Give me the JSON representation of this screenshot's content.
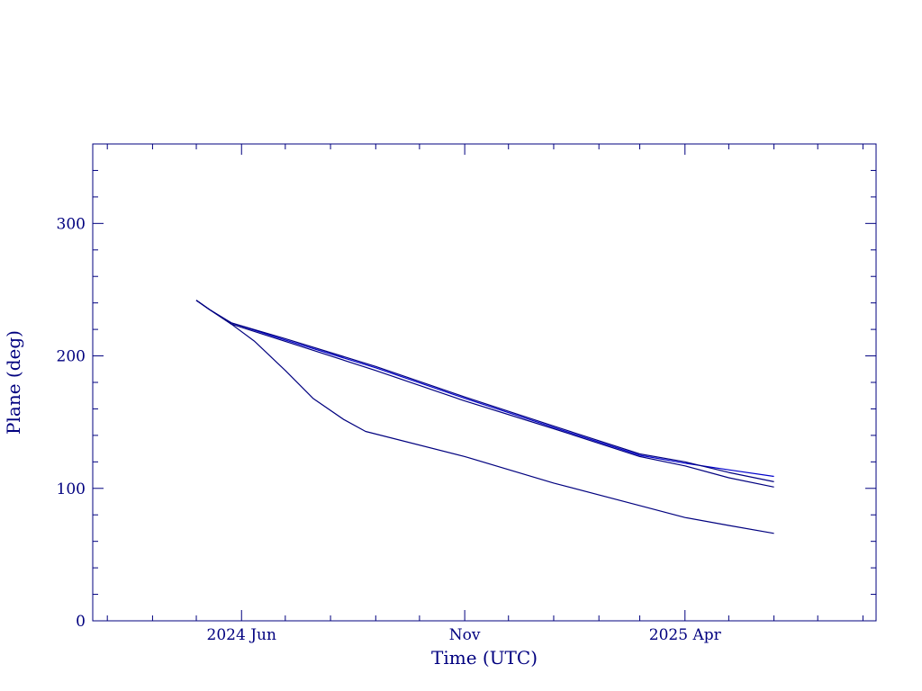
{
  "colors": {
    "axis": "#00007f",
    "series": "#00007f",
    "series_alt": "#0000cc",
    "background": "#ffffff"
  },
  "chart_data": {
    "type": "line",
    "title": "",
    "xlabel": "Time (UTC)",
    "ylabel": "Plane (deg)",
    "ylim": [
      0,
      360
    ],
    "xlim": [
      "2024-02-20",
      "2025-08-10"
    ],
    "x_ticks": [
      {
        "x": "2024-06-01",
        "label": "2024 Jun"
      },
      {
        "x": "2024-11-01",
        "label": "Nov"
      },
      {
        "x": "2025-04-01",
        "label": "2025 Apr"
      }
    ],
    "y_ticks": [
      0,
      100,
      200,
      300
    ],
    "grid": false,
    "series": [
      {
        "points": [
          [
            "2024-05-01",
            242
          ],
          [
            "2024-05-10",
            235
          ],
          [
            "2024-05-25",
            225
          ],
          [
            "2024-07-01",
            212
          ],
          [
            "2024-09-01",
            191
          ],
          [
            "2024-11-01",
            168
          ],
          [
            "2025-01-01",
            146
          ],
          [
            "2025-03-01",
            125
          ],
          [
            "2025-04-01",
            119
          ],
          [
            "2025-05-01",
            114
          ],
          [
            "2025-06-01",
            109
          ]
        ]
      },
      {
        "points": [
          [
            "2024-05-01",
            242
          ],
          [
            "2024-05-10",
            235
          ],
          [
            "2024-05-25",
            225
          ],
          [
            "2024-07-01",
            213
          ],
          [
            "2024-09-01",
            192
          ],
          [
            "2024-11-01",
            169
          ],
          [
            "2025-01-01",
            147
          ],
          [
            "2025-03-01",
            126
          ],
          [
            "2025-04-01",
            120
          ],
          [
            "2025-05-01",
            112
          ],
          [
            "2025-06-01",
            105
          ]
        ]
      },
      {
        "points": [
          [
            "2024-05-01",
            242
          ],
          [
            "2024-05-10",
            235
          ],
          [
            "2024-05-25",
            224
          ],
          [
            "2024-07-01",
            211
          ],
          [
            "2024-09-01",
            189
          ],
          [
            "2024-11-01",
            166
          ],
          [
            "2025-01-01",
            145
          ],
          [
            "2025-03-01",
            124
          ],
          [
            "2025-04-01",
            117
          ],
          [
            "2025-05-01",
            108
          ],
          [
            "2025-06-01",
            101
          ]
        ]
      },
      {
        "points": [
          [
            "2024-05-01",
            242
          ],
          [
            "2024-05-10",
            235
          ],
          [
            "2024-05-25",
            224
          ],
          [
            "2024-06-10",
            211
          ],
          [
            "2024-07-01",
            189
          ],
          [
            "2024-07-20",
            168
          ],
          [
            "2024-08-10",
            152
          ],
          [
            "2024-08-25",
            143
          ],
          [
            "2024-11-01",
            124
          ],
          [
            "2025-01-01",
            104
          ],
          [
            "2025-03-01",
            87
          ],
          [
            "2025-04-01",
            78
          ],
          [
            "2025-05-01",
            72
          ],
          [
            "2025-06-01",
            66
          ]
        ]
      }
    ]
  }
}
